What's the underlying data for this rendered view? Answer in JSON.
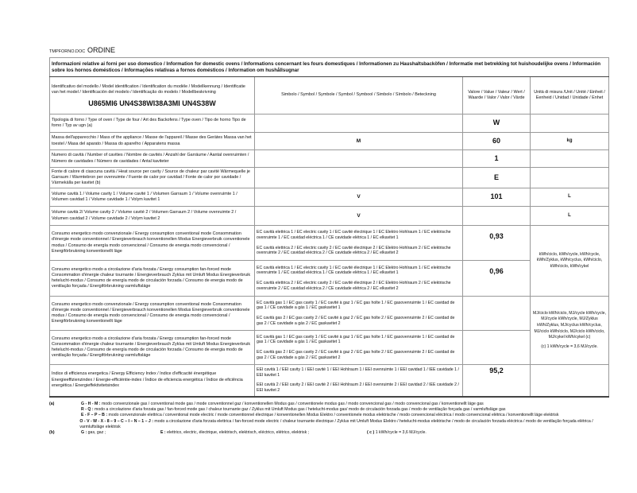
{
  "doc": {
    "file": "TMPFORNO.DOC",
    "order": "ORDINE"
  },
  "title": "Informazioni relative ai forni per uso domestico / Information for domestic ovens / Informations concernant les fours domestiques / Informationen zu Haushaltsbacköfen / Informatie met betrekking tot huishoudelijke ovens / Información sobre los hornos domésticos / Informações relativas a fornos domésticos / Information om hushållsugnar",
  "header": {
    "model_label": "Identificativo del modello / Model identification / Identification du modèle / Modellkennung / Identificatie van het model / Identificación del modelo / Identificação do modelo / Modellbeskrivning",
    "model": "U865MI6 UN4S38WI38A3MI UN4S38W",
    "symbol": "Simbolo / Symbol / Symbole / Symbol / Symbool / Simbolo / Símbolo / Beteckning",
    "value": "Valore / Value / Valeur / Wert / Waarde / Valor / Valor / Värde",
    "unit": "Unità di misura /Unit / Unité / Einheit / Eenheid / Unidad / Unidade / Enhet"
  },
  "rows": [
    {
      "desc": "Tipologia di forno / Type of oven / Type de four / Art des Backofens / Type oven / Tipo de horno Tipo de forno / Typ av ugn (a)",
      "symbol": "",
      "value": "W",
      "unit": ""
    },
    {
      "desc": "Massa dell'apparecchio / Mass of the appliance / Masse de l'appareil / Masse des Gerätes Massa van het toestel / Masa del aparato / Massa do aparelho / Apparatens massa",
      "symbol": "M",
      "value": "60",
      "unit": "kg"
    },
    {
      "desc": "Numero di cavità / Number of cavities / Nombre de cavités / Anzahl der Garräume / Aantal ovenruimten / Número de cavidades / Número de cavidades / Antal kaviteter",
      "symbol": "",
      "value": "1",
      "unit": ""
    },
    {
      "desc": "Fonte di calore di ciascuna cavità / Heat source per cavity / Source de chaleur par cavité Wärmequelle je Garraum / Warmtebron per ovenruimte / Fuente de calor por cavidad / Fonte de calor por cavidade / Värmekälla per kavitet (b)",
      "symbol": "",
      "value": "E",
      "unit": ""
    },
    {
      "desc": "Volume cavità 1 / Volume cavity 1 / Volume cavité 1 / Volumen Garraum 1 / Volume ovenruimte 1 / Volumen cavidad 1 / Volume cavidade 1 / Volym kavitet 1",
      "symbol": "V",
      "value": "101",
      "unit": "L"
    },
    {
      "desc": "Volume cavità 2/ Volume cavity 2 / Volume cavité 2 / Volumen Garraum 2 / Volume ovenruimte 2 / Volumen cavidad 2 / Volume cavidade 2 / Volym kavitet 2",
      "symbol": "V",
      "value": "",
      "unit": "L"
    }
  ],
  "energy": {
    "desc_conv": "Consumo energetico modo convenzionale / Energy consumption conventional mode Consommation d'énergie mode conventionnel / Energieverbrauch konventionellen Modus Energieverbruik conventionele modus / Consumo de energía modo convencional / Consumo de energia modo convencional / Energiförbrukning konventionellt läge",
    "desc_fan": "Consumo energetico modo a circolazione d'aria forzata / Energy consumption fan-forced mode Consommation d'énergie chaleur tournante / Energieverbrauch Zyklus mit Umluft Modus Energieverbruik hetelucht-modus / Consumo de energía modo de circulación forzada / Consumo de energia modo de ventilação forçada / Energiförbrukning varmluftsläge",
    "ec_el1": "EC cavità elettrica 1 / EC electric cavity 1 / EC cavité électrique 1 / EC Elektro Hohlraum 1 / EC elektrische ovenruimte 1 / EC cavidad eléctrica 1 / CE cavidade elétrica 1 / EC elkavitet 1",
    "ec_el2": "EC cavità elettrica 2 / EC electric cavity 2 / EC cavité électrique 2 / EC Elektro Hohlraum 2 / EC elektrische ovenruimte 2 / EC cavidad eléctrica 2 / CE cavidade elétrica 2 / EC elkavitet 2",
    "ec_gas1": "EC cavità gas 1 / EC gas cavity 1 / EC cavité à gaz 1 / EC gas holte 1 / EC gasovenruimte 1 / EC cavidad de gas 1 / CE cavidade a gás 1 / EC gaskavitet 1",
    "ec_gas2": "EC cavità gas 2 / EC gas cavity 2 / EC cavité à gaz 2 / EC gas holte 2 / EC gasovenruimte 2 / EC cavidad de gas 2 / CE cavidade a gás 2 / EC gaskavitet 2",
    "value_el_conv": "0,93",
    "value_el_fan": "0,96",
    "value_gas_conv": "",
    "value_gas_fan": "",
    "unit_el": "kWh/ciclo, kWh/cycle, kWh/cycle, kWh/Zyklus, kWh/cyclus, kWh/ciclo, kWh/ciclo, kWh/cykel",
    "unit_gas": "MJ/ciclo kWh/ciclo, MJ/cycle kWh/cycle, MJ/cycle kWh/cycle, MJ/Zyklus kWh/Zyklus, MJ/cyclus kWh/cyclus, MJ/ciclo kWh/ciclo, MJ/ciclo kWh/ciclo, MJ/cykel kWh/cykel (c)",
    "unit_gas_note": "(c) 1 kWh/cycle = 3,6 MJ/cycle."
  },
  "eei": {
    "desc": "Indice di efficienza energetica / Energy Efficiency Index / Indice d'efficacité énergétique Energieeffizienzindex / Energie-efficiëntie-index / Índice de eficiencia energética / Índice de eficiência energética / Energieffektivitetsindex",
    "sym1": "EEI cavità 1 / EEI cavity 1 / EEI cavité 1 / EEI Hohlraum 1 / EEI ovenruimte 1 / EEI cavidad 1 / IEE cavidade 1 / EEI kavitet 1",
    "sym2": "EEI cavità 2 / EEI cavity 2 / EEI cavité 2 / EEI Hohlraum 2 / EEI ovenruimte 2 / EEI cavidad 2 / IEE cavidade 2 / EEI kavitet 2",
    "value": "95,2"
  },
  "footnotes": {
    "a_label": "(a)",
    "a1_key": "G - H - M :",
    "a1": "modo convenzionale gas / conventional mode gas / mode conventionnel gaz / konventionellen Modus gas / conventionele modus gas / modo convencional gas / modo convencional gas / konventionellt läge gas",
    "a2_key": "R - Q :",
    "a2": "modo a circolazione d'aria forzata gas / fan-forced mode gas / chaleur tournante gaz / Zyklus mit Umluft Modus gas / hetelucht-modus gas/ modo de circulación forzada gas / modo de ventilação forçada gas / varmluftsläge gas",
    "a3_key": "E - F – P – B :",
    "a3": "modo convenzionale elettrica / conventional mode electric / mode conventionnel électrique / konventionellen Modus Elektro / conventionele modus elektrische / modo convencional eléctrica / modo convencional elétrica / konventionellt läge elektrisk",
    "a4_key": "O - V - W - X - 8 – 9 – C – I – N – 1 – J :",
    "a4": "modo a circolazione d'aria forzata elettrica / fan-forced mode electric / chaleur tournante électrique / Zyklus mit Umluft Modus Elektro / hetelucht-modus elektrische / modo de circulación forzada eléctrica / modo de ventilação forçada elétrica / varmluftsläge elektrisk",
    "b_label": "(b)",
    "b1_key": "G :",
    "b1": "gas, gaz ;",
    "b2_key": "E :",
    "b2": "elettrico, electric, électrique, elektrisch, elektrisch, eléctrico, elétrico, elektrisk ;",
    "c_key": "( c )",
    "c": "1 kWh/cycle = 3,6 MJ/cycle."
  }
}
